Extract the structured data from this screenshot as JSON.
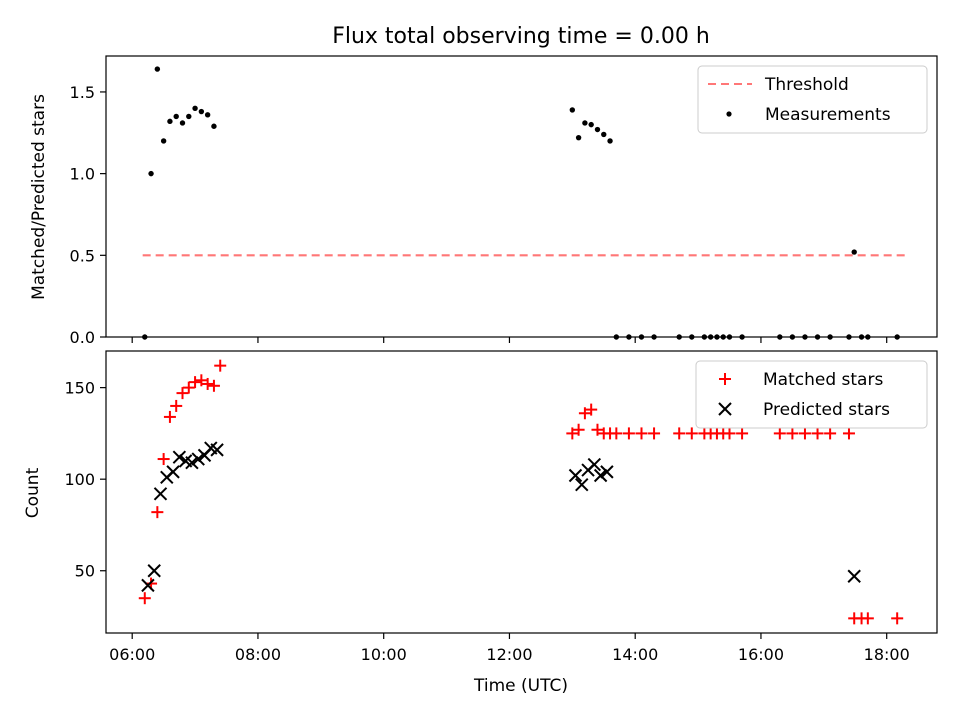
{
  "title": "Flux total observing time = 0.00 h",
  "colors": {
    "matched": "#ff0000",
    "predicted": "#000000",
    "measurement": "#000000",
    "threshold": "#ff7777"
  },
  "chart_data": [
    {
      "type": "scatter",
      "panel": "top",
      "ylabel": "Matched/Predicted stars",
      "xlim": [
        "05:35",
        "18:48"
      ],
      "ylim": [
        0,
        1.72
      ],
      "yticks": [
        0.0,
        0.5,
        1.0,
        1.5
      ],
      "ytick_labels": [
        "0.0",
        "0.5",
        "1.0",
        "1.5"
      ],
      "legend_position": "upper right",
      "series": [
        {
          "name": "Threshold",
          "kind": "dashed-line",
          "x": [
            "06:10",
            "18:20"
          ],
          "y": [
            0.5,
            0.5
          ]
        },
        {
          "name": "Measurements",
          "kind": "dots",
          "x": [
            "06:12",
            "06:18",
            "06:24",
            "06:30",
            "06:36",
            "06:42",
            "06:48",
            "06:54",
            "07:00",
            "07:06",
            "07:12",
            "07:18",
            "13:00",
            "13:06",
            "13:12",
            "13:18",
            "13:24",
            "13:30",
            "13:36",
            "13:42",
            "13:54",
            "14:06",
            "14:18",
            "14:42",
            "14:54",
            "15:06",
            "15:12",
            "15:18",
            "15:24",
            "15:30",
            "15:42",
            "16:18",
            "16:30",
            "16:42",
            "16:54",
            "17:06",
            "17:24",
            "17:29",
            "17:36",
            "17:42",
            "18:10"
          ],
          "y": [
            0.0,
            1.0,
            1.64,
            1.2,
            1.32,
            1.35,
            1.31,
            1.35,
            1.4,
            1.38,
            1.36,
            1.29,
            1.39,
            1.22,
            1.31,
            1.3,
            1.27,
            1.24,
            1.2,
            0.0,
            0.0,
            0.0,
            0.0,
            0.0,
            0.0,
            0.0,
            0.0,
            0.0,
            0.0,
            0.0,
            0.0,
            0.0,
            0.0,
            0.0,
            0.0,
            0.0,
            0.0,
            0.52,
            0.0,
            0.0,
            0.0
          ]
        }
      ]
    },
    {
      "type": "scatter",
      "panel": "bottom",
      "xlabel": "Time (UTC)",
      "ylabel": "Count",
      "xlim": [
        "05:35",
        "18:48"
      ],
      "ylim": [
        16,
        170
      ],
      "yticks": [
        50,
        100,
        150
      ],
      "ytick_labels": [
        "50",
        "100",
        "150"
      ],
      "xticks": [
        "06:00",
        "08:00",
        "10:00",
        "12:00",
        "14:00",
        "16:00",
        "18:00"
      ],
      "xtick_labels": [
        "06:00",
        "08:00",
        "10:00",
        "12:00",
        "14:00",
        "16:00",
        "18:00"
      ],
      "legend_position": "upper right",
      "series": [
        {
          "name": "Matched stars",
          "kind": "plus",
          "x": [
            "06:12",
            "06:18",
            "06:24",
            "06:30",
            "06:36",
            "06:42",
            "06:48",
            "06:54",
            "07:00",
            "07:06",
            "07:12",
            "07:18",
            "07:24",
            "13:00",
            "13:06",
            "13:12",
            "13:18",
            "13:24",
            "13:30",
            "13:36",
            "13:42",
            "13:54",
            "14:06",
            "14:18",
            "14:42",
            "14:54",
            "15:06",
            "15:12",
            "15:18",
            "15:24",
            "15:30",
            "15:42",
            "16:18",
            "16:30",
            "16:42",
            "16:54",
            "17:06",
            "17:24",
            "17:29",
            "17:36",
            "17:42",
            "18:10"
          ],
          "y": [
            35,
            43,
            82,
            111,
            134,
            140,
            147,
            150,
            153,
            154,
            152,
            151,
            162,
            125,
            127,
            136,
            138,
            127,
            125,
            125,
            125,
            125,
            125,
            125,
            125,
            125,
            125,
            125,
            125,
            125,
            125,
            125,
            125,
            125,
            125,
            125,
            125,
            125,
            24,
            24,
            24,
            24
          ]
        },
        {
          "name": "Predicted stars",
          "kind": "x",
          "x": [
            "06:15",
            "06:21",
            "06:27",
            "06:33",
            "06:39",
            "06:45",
            "06:51",
            "06:57",
            "07:03",
            "07:09",
            "07:15",
            "07:21",
            "13:03",
            "13:09",
            "13:15",
            "13:21",
            "13:27",
            "13:33",
            "17:29"
          ],
          "y": [
            42,
            50,
            92,
            101,
            104,
            112,
            110,
            109,
            111,
            113,
            117,
            116,
            102,
            97,
            105,
            108,
            102,
            104,
            47
          ]
        }
      ]
    }
  ]
}
